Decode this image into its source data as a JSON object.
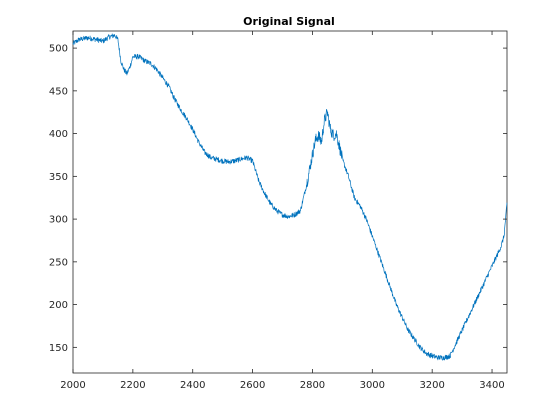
{
  "chart_data": {
    "type": "line",
    "title": "Original Signal",
    "xlabel": "",
    "ylabel": "",
    "xlim": [
      2000,
      3450
    ],
    "ylim": [
      120,
      520
    ],
    "xticks": [
      2000,
      2200,
      2400,
      2600,
      2800,
      3000,
      3200,
      3400
    ],
    "yticks": [
      150,
      200,
      250,
      300,
      350,
      400,
      450,
      500
    ],
    "grid": false,
    "legend": "none",
    "line_color": "#0072BD",
    "series": [
      {
        "x": [
          2000,
          2020,
          2050,
          2080,
          2100,
          2120,
          2140,
          2150,
          2160,
          2170,
          2180,
          2190,
          2200,
          2220,
          2240,
          2260,
          2280,
          2300,
          2320,
          2340,
          2360,
          2380,
          2400,
          2420,
          2440,
          2460,
          2480,
          2500,
          2520,
          2540,
          2560,
          2580,
          2600,
          2620,
          2640,
          2660,
          2680,
          2700,
          2720,
          2740,
          2760,
          2780,
          2800,
          2810,
          2820,
          2830,
          2840,
          2850,
          2860,
          2870,
          2880,
          2900,
          2920,
          2940,
          2960,
          2980,
          3000,
          3020,
          3040,
          3060,
          3080,
          3100,
          3120,
          3140,
          3160,
          3180,
          3200,
          3220,
          3240,
          3260,
          3280,
          3300,
          3320,
          3340,
          3360,
          3380,
          3400,
          3420,
          3430,
          3440,
          3450
        ],
        "y": [
          505,
          510,
          512,
          510,
          508,
          513,
          515,
          510,
          485,
          475,
          470,
          478,
          490,
          490,
          485,
          482,
          475,
          465,
          455,
          440,
          428,
          418,
          405,
          390,
          378,
          372,
          370,
          368,
          367,
          368,
          370,
          372,
          368,
          345,
          330,
          318,
          310,
          305,
          303,
          305,
          310,
          340,
          375,
          392,
          398,
          390,
          415,
          425,
          405,
          398,
          400,
          370,
          350,
          325,
          315,
          300,
          280,
          260,
          240,
          220,
          200,
          185,
          170,
          160,
          150,
          143,
          140,
          138,
          138,
          140,
          155,
          170,
          185,
          200,
          215,
          230,
          245,
          260,
          268,
          280,
          318
        ]
      }
    ]
  }
}
